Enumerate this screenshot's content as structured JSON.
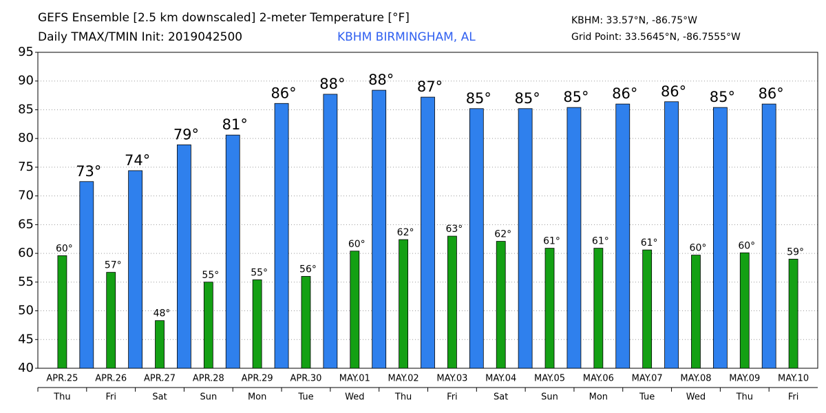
{
  "chart_data": {
    "type": "bar",
    "title": "GEFS Ensemble [2.5 km downscaled] 2-meter Temperature [°F]",
    "subtitle": "Daily TMAX/TMIN Init: 2019042500",
    "station": "KBHM BIRMINGHAM, AL",
    "station_coords": "KBHM: 33.57°N, -86.75°W",
    "grid_point": "Grid Point: 33.5645°N, -86.7555°W",
    "categories": [
      "APR.25",
      "APR.26",
      "APR.27",
      "APR.28",
      "APR.29",
      "APR.30",
      "MAY.01",
      "MAY.02",
      "MAY.03",
      "MAY.04",
      "MAY.05",
      "MAY.06",
      "MAY.07",
      "MAY.08",
      "MAY.09",
      "MAY.10"
    ],
    "weekdays": [
      "Thu",
      "Fri",
      "Sat",
      "Sun",
      "Mon",
      "Tue",
      "Wed",
      "Thu",
      "Fri",
      "Sat",
      "Sun",
      "Mon",
      "Tue",
      "Wed",
      "Thu",
      "Fri"
    ],
    "series": [
      {
        "name": "TMAX",
        "color": "#2f80ed",
        "values": [
          72.5,
          74.4,
          78.9,
          80.6,
          86.1,
          87.7,
          88.4,
          87.2,
          85.2,
          85.2,
          85.4,
          86.0,
          86.4,
          85.4,
          86.0,
          null
        ],
        "value_labels": [
          "73°",
          "74°",
          "79°",
          "81°",
          "86°",
          "88°",
          "88°",
          "87°",
          "85°",
          "85°",
          "85°",
          "86°",
          "86°",
          "85°",
          "86°",
          null
        ]
      },
      {
        "name": "TMIN",
        "color": "#14a014",
        "values": [
          59.6,
          56.7,
          48.3,
          55.0,
          55.4,
          56.0,
          60.4,
          62.4,
          63.0,
          62.1,
          60.9,
          60.9,
          60.6,
          59.7,
          60.1,
          59.0
        ],
        "value_labels": [
          "60°",
          "57°",
          "48°",
          "55°",
          "55°",
          "56°",
          "60°",
          "62°",
          "63°",
          "62°",
          "61°",
          "61°",
          "61°",
          "60°",
          "60°",
          "59°"
        ]
      }
    ],
    "ylim": [
      40,
      95
    ],
    "yticks": [
      40,
      45,
      50,
      55,
      60,
      65,
      70,
      75,
      80,
      85,
      90,
      95
    ],
    "grid": true
  }
}
